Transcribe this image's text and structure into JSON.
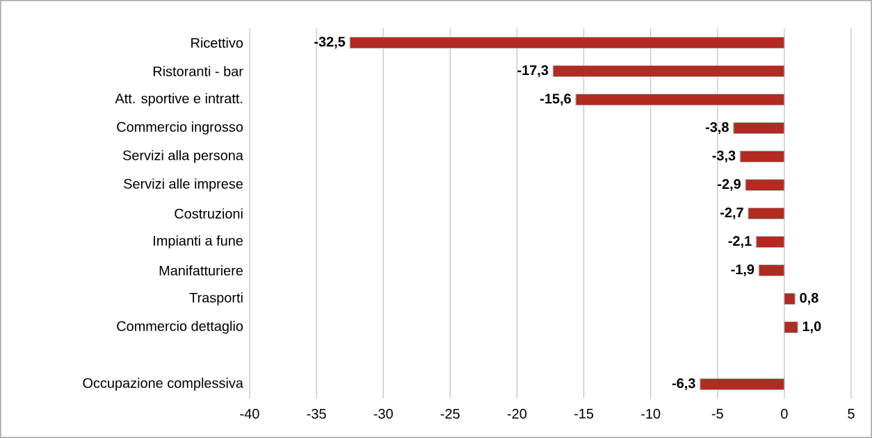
{
  "chart_data": {
    "type": "bar",
    "orientation": "horizontal",
    "categories": [
      "Ricettivo",
      "Ristoranti - bar",
      "Att. sportive e intratt.",
      "Commercio ingrosso",
      "Servizi alla persona",
      "Servizi alle imprese",
      "Costruzioni",
      "Impianti a fune",
      "Manifatturiere",
      "Trasporti",
      "Commercio dettaglio",
      null,
      "Occupazione complessiva"
    ],
    "values": [
      -32.5,
      -17.3,
      -15.6,
      -3.8,
      -3.3,
      -2.9,
      -2.7,
      -2.1,
      -1.9,
      0.8,
      1.0,
      null,
      -6.3
    ],
    "value_labels": [
      "-32,5",
      "-17,3",
      "-15,6",
      "-3,8",
      "-3,3",
      "-2,9",
      "-2,7",
      "-2,1",
      "-1,9",
      "0,8",
      "1,0",
      null,
      "-6,3"
    ],
    "color": "#b22a20",
    "xlim": [
      -40,
      5
    ],
    "xticks": [
      -40,
      -35,
      -30,
      -25,
      -20,
      -15,
      -10,
      -5,
      0,
      5
    ],
    "grid": "x"
  }
}
